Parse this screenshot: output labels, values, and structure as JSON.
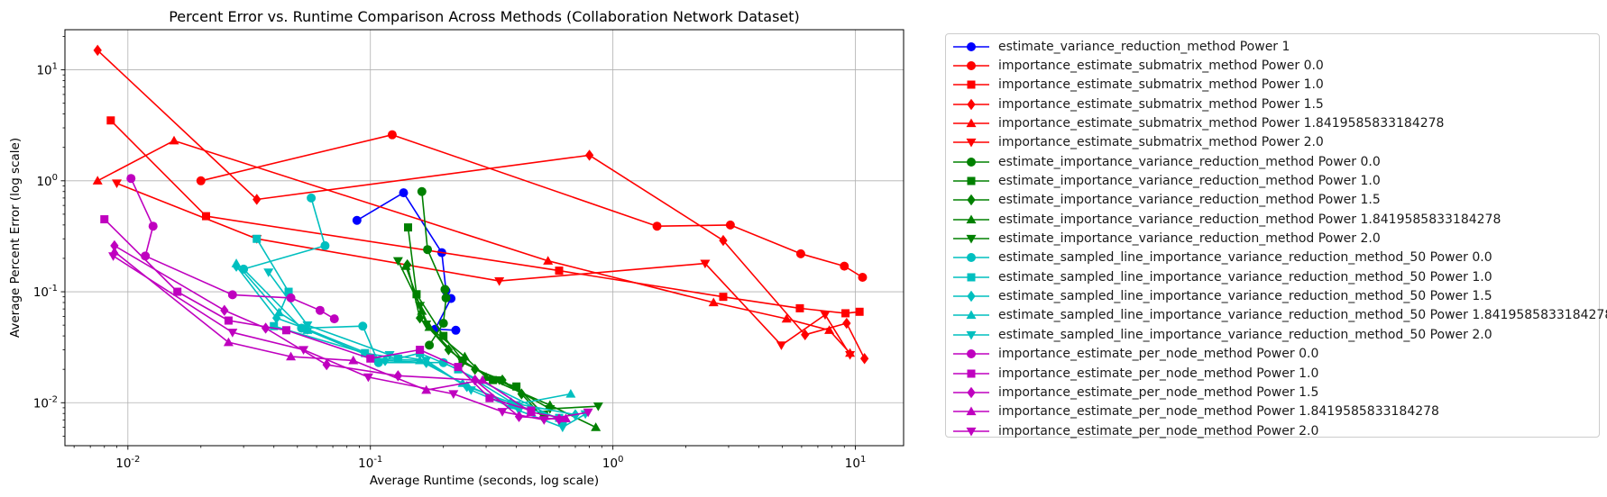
{
  "chart_data": {
    "type": "line",
    "title": "Percent Error vs. Runtime Comparison Across Methods (Collaboration Network Dataset)",
    "xlabel": "Average Runtime (seconds, log scale)",
    "ylabel": "Average Percent Error (log scale)",
    "xscale": "log",
    "yscale": "log",
    "xlim": [
      0.0055,
      15.8
    ],
    "ylim": [
      0.0041,
      23
    ],
    "xticks": [
      {
        "value": 0.01,
        "label": "10^{-2}"
      },
      {
        "value": 0.1,
        "label": "10^{-1}"
      },
      {
        "value": 1,
        "label": "10^{0}"
      },
      {
        "value": 10,
        "label": "10^{1}"
      }
    ],
    "yticks": [
      {
        "value": 0.01,
        "label": "10^{-2}"
      },
      {
        "value": 0.1,
        "label": "10^{-1}"
      },
      {
        "value": 1,
        "label": "10^{0}"
      },
      {
        "value": 10,
        "label": "10^{1}"
      }
    ],
    "grid": true,
    "legend_position": "outside-right",
    "series": [
      {
        "name": "estimate_variance_reduction_method Power 1",
        "color": "#0000ff",
        "marker": "circle",
        "points": [
          [
            0.088,
            0.44
          ],
          [
            0.137,
            0.78
          ],
          [
            0.197,
            0.225
          ],
          [
            0.205,
            0.102
          ],
          [
            0.215,
            0.087
          ],
          [
            0.185,
            0.046
          ],
          [
            0.225,
            0.045
          ]
        ]
      },
      {
        "name": "importance_estimate_submatrix_method Power 0.0",
        "color": "#ff0000",
        "marker": "circle",
        "points": [
          [
            0.02,
            1.0
          ],
          [
            0.123,
            2.6
          ],
          [
            1.52,
            0.39
          ],
          [
            3.05,
            0.4
          ],
          [
            5.95,
            0.22
          ],
          [
            9.0,
            0.17
          ],
          [
            10.7,
            0.135
          ]
        ]
      },
      {
        "name": "importance_estimate_submatrix_method Power 1.0",
        "color": "#ff0000",
        "marker": "square",
        "points": [
          [
            0.0085,
            3.5
          ],
          [
            0.021,
            0.48
          ],
          [
            0.6,
            0.155
          ],
          [
            2.85,
            0.09
          ],
          [
            5.9,
            0.071
          ],
          [
            9.1,
            0.064
          ],
          [
            10.4,
            0.066
          ]
        ]
      },
      {
        "name": "importance_estimate_submatrix_method Power 1.5",
        "color": "#ff0000",
        "marker": "diamond",
        "points": [
          [
            0.0075,
            15
          ],
          [
            0.034,
            0.68
          ],
          [
            0.8,
            1.7
          ],
          [
            2.85,
            0.29
          ],
          [
            6.2,
            0.041
          ],
          [
            9.2,
            0.052
          ],
          [
            10.9,
            0.025
          ]
        ]
      },
      {
        "name": "importance_estimate_submatrix_method Power 1.8419585833184278",
        "color": "#ff0000",
        "marker": "triangle-up",
        "points": [
          [
            0.0075,
            1.0
          ],
          [
            0.0155,
            2.3
          ],
          [
            0.54,
            0.19
          ],
          [
            2.6,
            0.08
          ],
          [
            5.2,
            0.057
          ],
          [
            7.8,
            0.045
          ],
          [
            9.5,
            0.028
          ]
        ]
      },
      {
        "name": "importance_estimate_submatrix_method Power 2.0",
        "color": "#ff0000",
        "marker": "triangle-down",
        "points": [
          [
            0.009,
            0.95
          ],
          [
            0.034,
            0.3
          ],
          [
            0.34,
            0.125
          ],
          [
            2.4,
            0.18
          ],
          [
            4.95,
            0.033
          ],
          [
            7.5,
            0.062
          ],
          [
            9.5,
            0.027
          ]
        ]
      },
      {
        "name": "estimate_importance_variance_reduction_method Power 0.0",
        "color": "#008000",
        "marker": "circle",
        "points": [
          [
            0.163,
            0.8
          ],
          [
            0.172,
            0.24
          ],
          [
            0.203,
            0.105
          ],
          [
            0.205,
            0.088
          ],
          [
            0.2,
            0.052
          ],
          [
            0.175,
            0.033
          ]
        ]
      },
      {
        "name": "estimate_importance_variance_reduction_method Power 1.0",
        "color": "#008000",
        "marker": "square",
        "points": [
          [
            0.143,
            0.38
          ],
          [
            0.155,
            0.095
          ],
          [
            0.2,
            0.04
          ],
          [
            0.24,
            0.024
          ],
          [
            0.32,
            0.016
          ],
          [
            0.4,
            0.014
          ],
          [
            0.52,
            0.0078
          ]
        ]
      },
      {
        "name": "estimate_importance_variance_reduction_method Power 1.5",
        "color": "#008000",
        "marker": "diamond",
        "points": [
          [
            0.142,
            0.175
          ],
          [
            0.16,
            0.058
          ],
          [
            0.21,
            0.03
          ],
          [
            0.27,
            0.02
          ],
          [
            0.35,
            0.016
          ],
          [
            0.42,
            0.012
          ],
          [
            0.52,
            0.0072
          ]
        ]
      },
      {
        "name": "estimate_importance_variance_reduction_method Power 1.8419585833184278",
        "color": "#008000",
        "marker": "triangle-up",
        "points": [
          [
            0.14,
            0.17
          ],
          [
            0.163,
            0.067
          ],
          [
            0.175,
            0.048
          ],
          [
            0.245,
            0.026
          ],
          [
            0.3,
            0.017
          ],
          [
            0.55,
            0.0095
          ],
          [
            0.85,
            0.006
          ]
        ]
      },
      {
        "name": "estimate_importance_variance_reduction_method Power 2.0",
        "color": "#008000",
        "marker": "triangle-down",
        "points": [
          [
            0.13,
            0.19
          ],
          [
            0.16,
            0.075
          ],
          [
            0.17,
            0.051
          ],
          [
            0.24,
            0.023
          ],
          [
            0.34,
            0.016
          ],
          [
            0.55,
            0.0088
          ],
          [
            0.87,
            0.0093
          ]
        ]
      },
      {
        "name": "estimate_sampled_line_importance_variance_reduction_method_50 Power 0.0",
        "color": "#00bfbf",
        "marker": "circle",
        "points": [
          [
            0.057,
            0.7
          ],
          [
            0.065,
            0.26
          ],
          [
            0.03,
            0.16
          ],
          [
            0.052,
            0.047
          ],
          [
            0.093,
            0.049
          ],
          [
            0.108,
            0.023
          ],
          [
            0.2,
            0.023
          ],
          [
            0.62,
            0.0068
          ]
        ]
      },
      {
        "name": "estimate_sampled_line_importance_variance_reduction_method_50 Power 1.0",
        "color": "#00bfbf",
        "marker": "square",
        "points": [
          [
            0.034,
            0.3
          ],
          [
            0.046,
            0.1
          ],
          [
            0.04,
            0.049
          ],
          [
            0.095,
            0.028
          ],
          [
            0.13,
            0.025
          ],
          [
            0.16,
            0.028
          ],
          [
            0.23,
            0.02
          ],
          [
            0.4,
            0.0095
          ],
          [
            0.6,
            0.0073
          ]
        ]
      },
      {
        "name": "estimate_sampled_line_importance_variance_reduction_method_50 Power 1.5",
        "color": "#00bfbf",
        "marker": "diamond",
        "points": [
          [
            0.028,
            0.17
          ],
          [
            0.041,
            0.058
          ],
          [
            0.055,
            0.046
          ],
          [
            0.115,
            0.024
          ],
          [
            0.17,
            0.023
          ],
          [
            0.25,
            0.014
          ],
          [
            0.38,
            0.01
          ],
          [
            0.7,
            0.0078
          ]
        ]
      },
      {
        "name": "estimate_sampled_line_importance_variance_reduction_method_50 Power 1.8419585833184278",
        "color": "#00bfbf",
        "marker": "triangle-up",
        "points": [
          [
            0.028,
            0.18
          ],
          [
            0.042,
            0.065
          ],
          [
            0.055,
            0.045
          ],
          [
            0.105,
            0.025
          ],
          [
            0.16,
            0.024
          ],
          [
            0.24,
            0.015
          ],
          [
            0.38,
            0.0095
          ],
          [
            0.67,
            0.012
          ]
        ]
      },
      {
        "name": "estimate_sampled_line_importance_variance_reduction_method_50 Power 2.0",
        "color": "#00bfbf",
        "marker": "triangle-down",
        "points": [
          [
            0.038,
            0.15
          ],
          [
            0.055,
            0.05
          ],
          [
            0.12,
            0.027
          ],
          [
            0.17,
            0.024
          ],
          [
            0.26,
            0.013
          ],
          [
            0.41,
            0.0085
          ],
          [
            0.62,
            0.006
          ],
          [
            0.77,
            0.0079
          ]
        ]
      },
      {
        "name": "importance_estimate_per_node_method Power 0.0",
        "color": "#bf00bf",
        "marker": "circle",
        "points": [
          [
            0.0103,
            1.05
          ],
          [
            0.0127,
            0.39
          ],
          [
            0.0118,
            0.21
          ],
          [
            0.027,
            0.094
          ],
          [
            0.047,
            0.088
          ],
          [
            0.062,
            0.068
          ],
          [
            0.071,
            0.057
          ]
        ]
      },
      {
        "name": "importance_estimate_per_node_method Power 1.0",
        "color": "#bf00bf",
        "marker": "square",
        "points": [
          [
            0.008,
            0.45
          ],
          [
            0.016,
            0.1
          ],
          [
            0.026,
            0.055
          ],
          [
            0.045,
            0.045
          ],
          [
            0.1,
            0.025
          ],
          [
            0.16,
            0.03
          ],
          [
            0.23,
            0.021
          ],
          [
            0.31,
            0.011
          ],
          [
            0.46,
            0.0085
          ]
        ]
      },
      {
        "name": "importance_estimate_per_node_method Power 1.5",
        "color": "#bf00bf",
        "marker": "diamond",
        "points": [
          [
            0.0088,
            0.26
          ],
          [
            0.025,
            0.068
          ],
          [
            0.037,
            0.047
          ],
          [
            0.066,
            0.022
          ],
          [
            0.13,
            0.0175
          ],
          [
            0.27,
            0.016
          ],
          [
            0.41,
            0.0075
          ],
          [
            0.6,
            0.0071
          ]
        ]
      },
      {
        "name": "importance_estimate_per_node_method Power 1.8419585833184278",
        "color": "#bf00bf",
        "marker": "triangle-up",
        "points": [
          [
            0.0088,
            0.23
          ],
          [
            0.026,
            0.035
          ],
          [
            0.047,
            0.026
          ],
          [
            0.085,
            0.024
          ],
          [
            0.17,
            0.013
          ],
          [
            0.29,
            0.016
          ],
          [
            0.46,
            0.0082
          ],
          [
            0.64,
            0.0072
          ]
        ]
      },
      {
        "name": "importance_estimate_per_node_method Power 2.0",
        "color": "#bf00bf",
        "marker": "triangle-down",
        "points": [
          [
            0.0087,
            0.21
          ],
          [
            0.027,
            0.043
          ],
          [
            0.053,
            0.03
          ],
          [
            0.098,
            0.017
          ],
          [
            0.22,
            0.012
          ],
          [
            0.35,
            0.0083
          ],
          [
            0.52,
            0.007
          ],
          [
            0.79,
            0.0082
          ]
        ]
      }
    ]
  }
}
